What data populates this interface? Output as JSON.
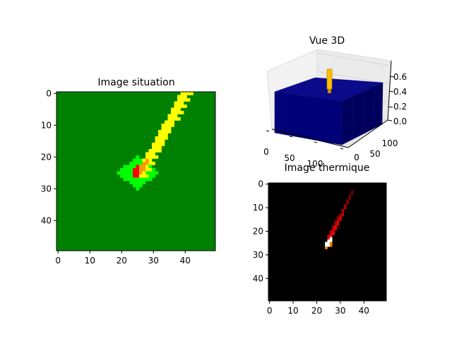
{
  "chart_data": [
    {
      "type": "heatmap",
      "title": "Image situation",
      "grid": false,
      "xlim": [
        -0.5,
        49.5
      ],
      "ylim": [
        49.5,
        -0.5
      ],
      "xticks": [
        0,
        10,
        20,
        30,
        40
      ],
      "yticks": [
        0,
        10,
        20,
        30,
        40
      ],
      "grid_size": [
        50,
        50
      ],
      "colors": {
        "ground": "#008000",
        "path": "#ffff00",
        "burn_edge": "#00ff00",
        "burn_mid": "#ff9900",
        "burn_core": "#ff0000"
      }
    },
    {
      "type": "bar3d",
      "title": "Vue 3D",
      "xticks": [
        0,
        50,
        100
      ],
      "yticks": [
        0,
        50,
        100
      ],
      "zticks": [
        "0.0",
        "0.2",
        "0.4",
        "0.6"
      ],
      "block_color": "#000080",
      "peak_color": "#ffbf00"
    },
    {
      "type": "heatmap",
      "title": "Image thermique",
      "grid": false,
      "xlim": [
        -0.5,
        49.5
      ],
      "ylim": [
        49.5,
        -0.5
      ],
      "xticks": [
        0,
        10,
        20,
        30,
        40
      ],
      "yticks": [
        0,
        10,
        20,
        30,
        40
      ],
      "grid_size": [
        50,
        50
      ],
      "colormap": "hot"
    }
  ]
}
